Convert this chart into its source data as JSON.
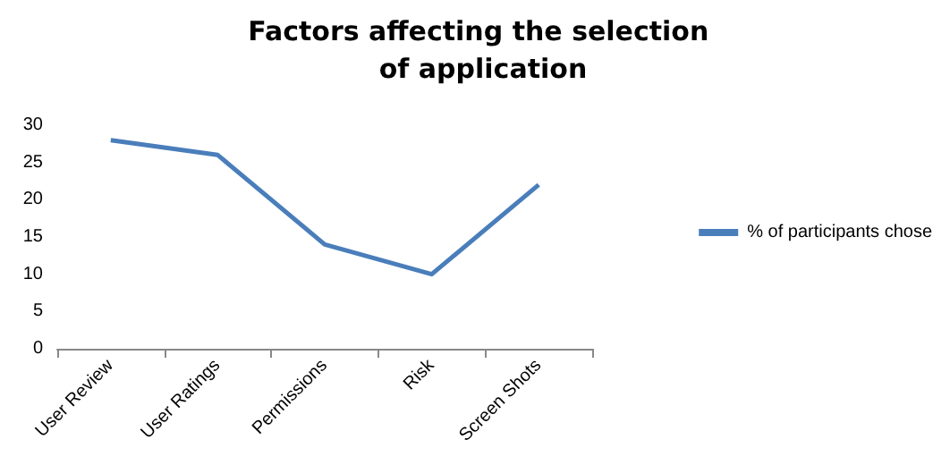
{
  "chart_data": {
    "type": "line",
    "title": "Factors affecting the selection of application",
    "categories": [
      "User Review",
      "User Ratings",
      "Permissions",
      "Risk",
      "Screen Shots"
    ],
    "series": [
      {
        "name": "% of participants chose",
        "color": "#4a7ebb",
        "values": [
          28,
          26,
          14,
          10,
          22
        ]
      }
    ],
    "ylim": [
      0,
      30
    ],
    "yticks": [
      0,
      5,
      10,
      15,
      20,
      25,
      30
    ],
    "grid": false,
    "legend": "right",
    "marker": "none",
    "line_style": "solid"
  }
}
